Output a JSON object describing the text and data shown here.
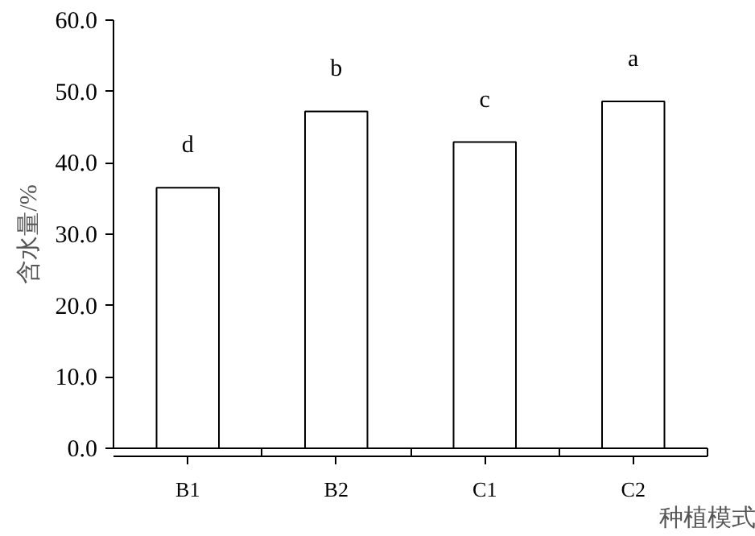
{
  "chart_data": {
    "type": "bar",
    "xlabel": "种植模式",
    "ylabel": "含水量/%",
    "categories": [
      "B1",
      "B2",
      "C1",
      "C2"
    ],
    "values": [
      36.5,
      47.2,
      42.9,
      48.6
    ],
    "color": "#ffffff",
    "ylim": [
      0,
      60
    ],
    "yticks": [
      {
        "value": 0,
        "label": "0.0"
      },
      {
        "value": 10,
        "label": "10.0"
      },
      {
        "value": 20,
        "label": "20.0"
      },
      {
        "value": 30,
        "label": "30.0"
      },
      {
        "value": 40,
        "label": "40.0"
      },
      {
        "value": 50,
        "label": "50.0"
      },
      {
        "value": 60,
        "label": "60.0"
      }
    ],
    "annotations": [
      "d",
      "b",
      "c",
      "a"
    ],
    "grid": false
  }
}
